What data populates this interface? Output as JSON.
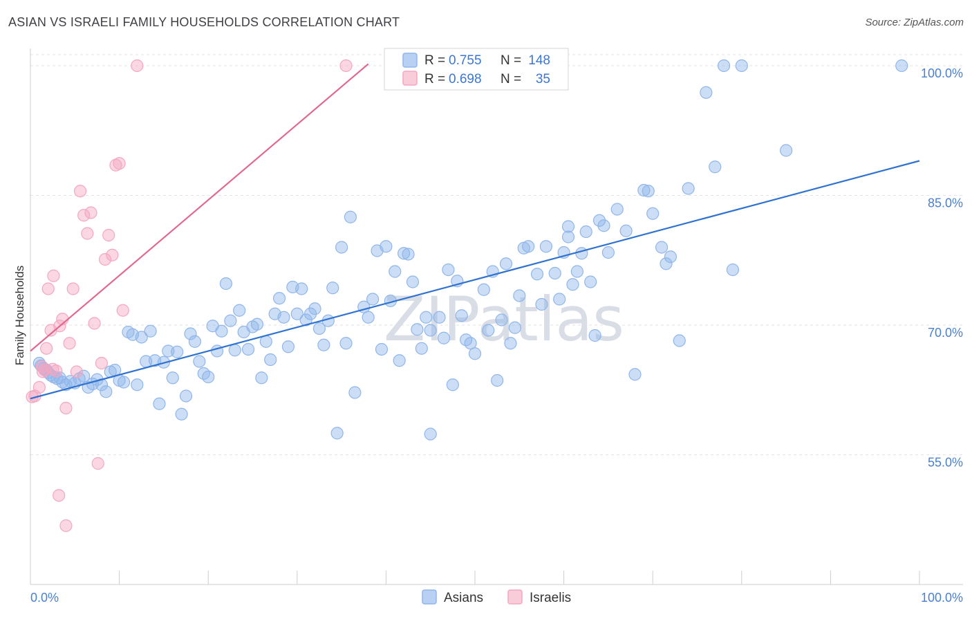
{
  "chart_data": {
    "type": "scatter",
    "title": "ASIAN VS ISRAELI FAMILY HOUSEHOLDS CORRELATION CHART",
    "source": "Source: ZipAtlas.com",
    "ylabel": "Family Households",
    "xlabel": "",
    "xlim": [
      0,
      100
    ],
    "ylim": [
      40,
      102
    ],
    "x_tick_labels": [
      "0.0%",
      "100.0%"
    ],
    "y_ticks": [
      {
        "value": 55,
        "label": "55.0%"
      },
      {
        "value": 70,
        "label": "70.0%"
      },
      {
        "value": 85,
        "label": "85.0%"
      },
      {
        "value": 100,
        "label": "100.0%"
      }
    ],
    "watermark": "ZIPatlas",
    "legend": [
      {
        "series": "Asians",
        "r_label": "R =",
        "r_value": "0.755",
        "n_label": "N =",
        "n_value": "148"
      },
      {
        "series": "Israelis",
        "r_label": "R =",
        "r_value": "0.698",
        "n_label": "N =",
        "n_value": "35"
      }
    ],
    "series": [
      {
        "name": "Asians",
        "color": "#8fb5ea",
        "line_color": "#2f72d0",
        "trend": {
          "x0": 0,
          "y0": 61.5,
          "x1": 100,
          "y1": 89.0
        },
        "points": [
          [
            1,
            65.6
          ],
          [
            1.2,
            65.3
          ],
          [
            1.5,
            65
          ],
          [
            1.8,
            64.8
          ],
          [
            2,
            64.5
          ],
          [
            2.3,
            64.2
          ],
          [
            2.6,
            64
          ],
          [
            3,
            63.8
          ],
          [
            3.3,
            63.9
          ],
          [
            3.6,
            63.4
          ],
          [
            4,
            63.1
          ],
          [
            4.5,
            63.5
          ],
          [
            5,
            63.3
          ],
          [
            5.5,
            63.8
          ],
          [
            6,
            64.1
          ],
          [
            6.5,
            62.8
          ],
          [
            7,
            63.2
          ],
          [
            7.5,
            63.7
          ],
          [
            8,
            63.1
          ],
          [
            8.5,
            62.3
          ],
          [
            9,
            64.6
          ],
          [
            9.5,
            64.8
          ],
          [
            10,
            63.6
          ],
          [
            10.5,
            63.4
          ],
          [
            11,
            69.2
          ],
          [
            11.5,
            68.9
          ],
          [
            12,
            63.1
          ],
          [
            12.5,
            68.6
          ],
          [
            13,
            65.8
          ],
          [
            13.5,
            69.3
          ],
          [
            14,
            65.9
          ],
          [
            14.5,
            60.9
          ],
          [
            15,
            65.7
          ],
          [
            15.5,
            67
          ],
          [
            16,
            63.9
          ],
          [
            16.5,
            66.9
          ],
          [
            17,
            59.7
          ],
          [
            17.5,
            61.8
          ],
          [
            18,
            69
          ],
          [
            18.5,
            68.1
          ],
          [
            19,
            65.8
          ],
          [
            19.5,
            64.4
          ],
          [
            20,
            64
          ],
          [
            20.5,
            69.9
          ],
          [
            21,
            67
          ],
          [
            21.5,
            69.3
          ],
          [
            22,
            74.8
          ],
          [
            22.5,
            70.5
          ],
          [
            23,
            67.1
          ],
          [
            23.5,
            71.7
          ],
          [
            24,
            69.2
          ],
          [
            24.5,
            67.2
          ],
          [
            25,
            69.8
          ],
          [
            25.5,
            70.1
          ],
          [
            26,
            63.9
          ],
          [
            26.5,
            68.1
          ],
          [
            27,
            66
          ],
          [
            27.5,
            71.3
          ],
          [
            28,
            73.1
          ],
          [
            28.5,
            70.9
          ],
          [
            29,
            67.5
          ],
          [
            29.5,
            74.4
          ],
          [
            30,
            71.3
          ],
          [
            30.5,
            74.2
          ],
          [
            31,
            70.6
          ],
          [
            31.5,
            71.3
          ],
          [
            32,
            71.9
          ],
          [
            32.5,
            69.6
          ],
          [
            33,
            67.7
          ],
          [
            33.5,
            70.5
          ],
          [
            34,
            74.3
          ],
          [
            35,
            79
          ],
          [
            35.5,
            67.9
          ],
          [
            36,
            82.5
          ],
          [
            36.5,
            62.2
          ],
          [
            37.5,
            72.1
          ],
          [
            38,
            70.9
          ],
          [
            38.5,
            73
          ],
          [
            39,
            78.6
          ],
          [
            39.5,
            67.2
          ],
          [
            40,
            79.1
          ],
          [
            41,
            76.2
          ],
          [
            41.5,
            65.9
          ],
          [
            42,
            78.3
          ],
          [
            42.5,
            78.2
          ],
          [
            43,
            75
          ],
          [
            43.5,
            69.5
          ],
          [
            44,
            67.3
          ],
          [
            44.5,
            70.9
          ],
          [
            45,
            69.4
          ],
          [
            46,
            70.9
          ],
          [
            46.5,
            68.5
          ],
          [
            47,
            76.4
          ],
          [
            47.5,
            63.1
          ],
          [
            48,
            75.1
          ],
          [
            48.5,
            71.1
          ],
          [
            49,
            68.3
          ],
          [
            49.5,
            67.9
          ],
          [
            50,
            66.7
          ],
          [
            51,
            74.1
          ],
          [
            51.5,
            69.4
          ],
          [
            52,
            76.2
          ],
          [
            52.5,
            63.6
          ],
          [
            53,
            70.6
          ],
          [
            53.5,
            77.1
          ],
          [
            54,
            67.9
          ],
          [
            54.5,
            69.7
          ],
          [
            55,
            73.4
          ],
          [
            55.5,
            78.9
          ],
          [
            56,
            79.1
          ],
          [
            57,
            75.9
          ],
          [
            57.5,
            72.4
          ],
          [
            58,
            79.1
          ],
          [
            59,
            76
          ],
          [
            59.5,
            73
          ],
          [
            60,
            78.4
          ],
          [
            60.5,
            81.4
          ],
          [
            61,
            74.7
          ],
          [
            61.5,
            76.2
          ],
          [
            62,
            78.3
          ],
          [
            62.5,
            80.8
          ],
          [
            63,
            75
          ],
          [
            63.5,
            68.8
          ],
          [
            64,
            82.1
          ],
          [
            64.5,
            81.5
          ],
          [
            65,
            78.4
          ],
          [
            66,
            83.4
          ],
          [
            67,
            80.9
          ],
          [
            68,
            64.3
          ],
          [
            69,
            85.6
          ],
          [
            69.5,
            85.5
          ],
          [
            70,
            82.9
          ],
          [
            71,
            79
          ],
          [
            71.5,
            77.1
          ],
          [
            72,
            77.9
          ],
          [
            73,
            68.2
          ],
          [
            74,
            85.8
          ],
          [
            76,
            96.9
          ],
          [
            77,
            88.3
          ],
          [
            78,
            100
          ],
          [
            79,
            76.4
          ],
          [
            80,
            100
          ],
          [
            85,
            90.2
          ],
          [
            98,
            100
          ],
          [
            34.5,
            57.5
          ],
          [
            45,
            57.4
          ],
          [
            40.5,
            72.8
          ],
          [
            60.5,
            80.2
          ]
        ]
      },
      {
        "name": "Israelis",
        "color": "#f4a6c0",
        "line_color": "#e06a8e",
        "trend": {
          "x0": 0,
          "y0": 67.0,
          "x1": 38,
          "y1": 100.2
        },
        "points": [
          [
            0.5,
            61.8
          ],
          [
            1,
            62.8
          ],
          [
            1.3,
            65.2
          ],
          [
            1.6,
            64.8
          ],
          [
            1.8,
            67.3
          ],
          [
            2,
            74.2
          ],
          [
            2.3,
            69.4
          ],
          [
            2.6,
            75.7
          ],
          [
            2.9,
            64.7
          ],
          [
            3.3,
            69.9
          ],
          [
            3.6,
            70.7
          ],
          [
            4,
            60.4
          ],
          [
            4.4,
            67.9
          ],
          [
            4.8,
            74.2
          ],
          [
            5.2,
            64.6
          ],
          [
            5.6,
            85.5
          ],
          [
            6,
            82.7
          ],
          [
            6.4,
            80.6
          ],
          [
            6.8,
            83
          ],
          [
            7.2,
            70.2
          ],
          [
            7.6,
            54
          ],
          [
            8,
            65.6
          ],
          [
            8.4,
            77.6
          ],
          [
            8.8,
            80.4
          ],
          [
            9.2,
            78.1
          ],
          [
            9.6,
            88.5
          ],
          [
            10,
            88.7
          ],
          [
            10.4,
            71.7
          ],
          [
            3.2,
            50.3
          ],
          [
            4,
            46.8
          ],
          [
            12,
            100
          ],
          [
            35.5,
            100
          ],
          [
            0.2,
            61.7
          ],
          [
            2.5,
            64.9
          ],
          [
            1.4,
            64.6
          ]
        ]
      }
    ]
  }
}
